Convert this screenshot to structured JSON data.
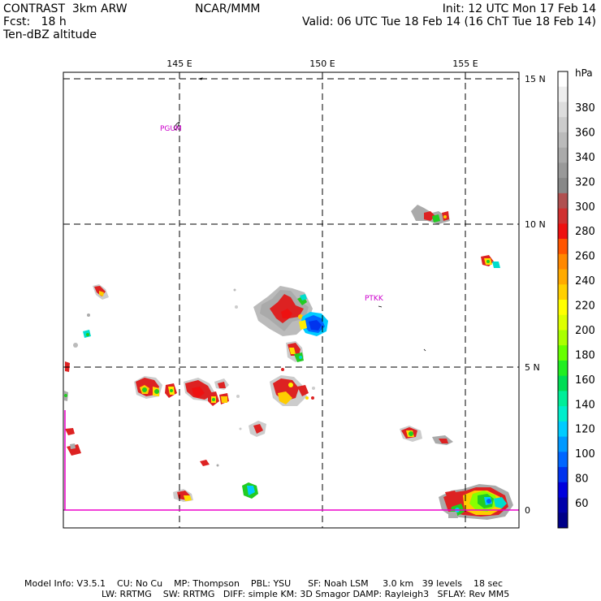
{
  "header": {
    "left_line1": "CONTRAST  3km ARW",
    "left_line2": "Fcst:   18 h",
    "left_line3": "Ten-dBZ altitude",
    "center": "NCAR/MMM",
    "right_line1": "Init: 12 UTC Mon 17 Feb 14",
    "right_line2": "Valid: 06 UTC Tue 18 Feb 14 (16 ChT Tue 18 Feb 14)"
  },
  "map": {
    "lon_labels": [
      "145 E",
      "150 E",
      "155 E"
    ],
    "lat_labels": [
      "15 N",
      "10 N",
      "5 N",
      "0"
    ],
    "stations": [
      {
        "id": "PGUM",
        "label": "PGUM"
      },
      {
        "id": "PTKK",
        "label": "PTKK"
      }
    ]
  },
  "colorbar": {
    "unit": "hPa",
    "labels": [
      "380",
      "360",
      "340",
      "320",
      "300",
      "280",
      "260",
      "240",
      "220",
      "200",
      "180",
      "160",
      "140",
      "120",
      "100",
      "80",
      "60"
    ],
    "colors": [
      "#ffffff",
      "#eeeeee",
      "#dddddd",
      "#cccccc",
      "#bbbbbb",
      "#aaaaaa",
      "#999999",
      "#888888",
      "#b05050",
      "#d03030",
      "#ee1111",
      "#ff5500",
      "#ff8800",
      "#ffaa00",
      "#ffd000",
      "#ffff00",
      "#ddff00",
      "#aaff00",
      "#66ff00",
      "#22ee22",
      "#00dd55",
      "#00ee99",
      "#00eecc",
      "#00ccff",
      "#0099ff",
      "#0066ff",
      "#0033ee",
      "#0000dd",
      "#0000aa",
      "#000088"
    ]
  },
  "footer": {
    "line1": "Model Info: V3.5.1    CU: No Cu    MP: Thompson    PBL: YSU      SF: Noah LSM     3.0 km   39 levels    18 sec",
    "line2": "LW: RRTMG    SW: RRTMG   DIFF: simple KM: 3D Smagor DAMP: Rayleigh3   SFLAY: Rev MM5"
  }
}
